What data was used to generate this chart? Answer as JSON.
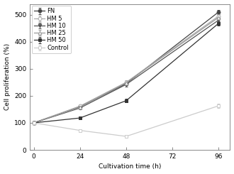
{
  "x": [
    0,
    24,
    48,
    72,
    96
  ],
  "series": [
    {
      "label": "FN",
      "y": [
        100,
        160,
        245,
        null,
        510
      ],
      "yerr": [
        2,
        5,
        7,
        null,
        8
      ],
      "color": "#444444",
      "marker": "o",
      "markerfacecolor": "#444444",
      "markeredgecolor": "#444444",
      "linestyle": "-",
      "linewidth": 0.9,
      "markersize": 3.5
    },
    {
      "label": "HM 5",
      "y": [
        100,
        162,
        250,
        null,
        495
      ],
      "yerr": [
        2,
        5,
        7,
        null,
        8
      ],
      "color": "#aaaaaa",
      "marker": "o",
      "markerfacecolor": "#ffffff",
      "markeredgecolor": "#aaaaaa",
      "linestyle": "-",
      "linewidth": 0.9,
      "markersize": 3.5
    },
    {
      "label": "HM 10",
      "y": [
        100,
        155,
        242,
        null,
        480
      ],
      "yerr": [
        2,
        5,
        7,
        null,
        8
      ],
      "color": "#555555",
      "marker": "v",
      "markerfacecolor": "#555555",
      "markeredgecolor": "#555555",
      "linestyle": "-",
      "linewidth": 0.9,
      "markersize": 3.5
    },
    {
      "label": "HM 25",
      "y": [
        100,
        158,
        248,
        null,
        490
      ],
      "yerr": [
        2,
        5,
        7,
        null,
        8
      ],
      "color": "#999999",
      "marker": "^",
      "markerfacecolor": "#ffffff",
      "markeredgecolor": "#999999",
      "linestyle": "-",
      "linewidth": 0.9,
      "markersize": 3.5
    },
    {
      "label": "HM 50",
      "y": [
        100,
        118,
        182,
        null,
        468
      ],
      "yerr": [
        2,
        4,
        7,
        null,
        8
      ],
      "color": "#333333",
      "marker": "s",
      "markerfacecolor": "#333333",
      "markeredgecolor": "#333333",
      "linestyle": "-",
      "linewidth": 0.9,
      "markersize": 3.5
    },
    {
      "label": "Control",
      "y": [
        100,
        72,
        50,
        null,
        163
      ],
      "yerr": [
        2,
        4,
        4,
        null,
        7
      ],
      "color": "#cccccc",
      "marker": "s",
      "markerfacecolor": "#ffffff",
      "markeredgecolor": "#cccccc",
      "linestyle": "-",
      "linewidth": 0.9,
      "markersize": 3.5
    }
  ],
  "xlabel": "Cultivation time (h)",
  "ylabel": "Cell proliferation (%)",
  "xlim": [
    -2,
    102
  ],
  "ylim": [
    0,
    540
  ],
  "xticks": [
    0,
    24,
    48,
    72,
    96
  ],
  "yticks": [
    0,
    100,
    200,
    300,
    400,
    500
  ],
  "legend_loc": "upper left",
  "fontsize": 6.5,
  "background_color": "#ffffff"
}
